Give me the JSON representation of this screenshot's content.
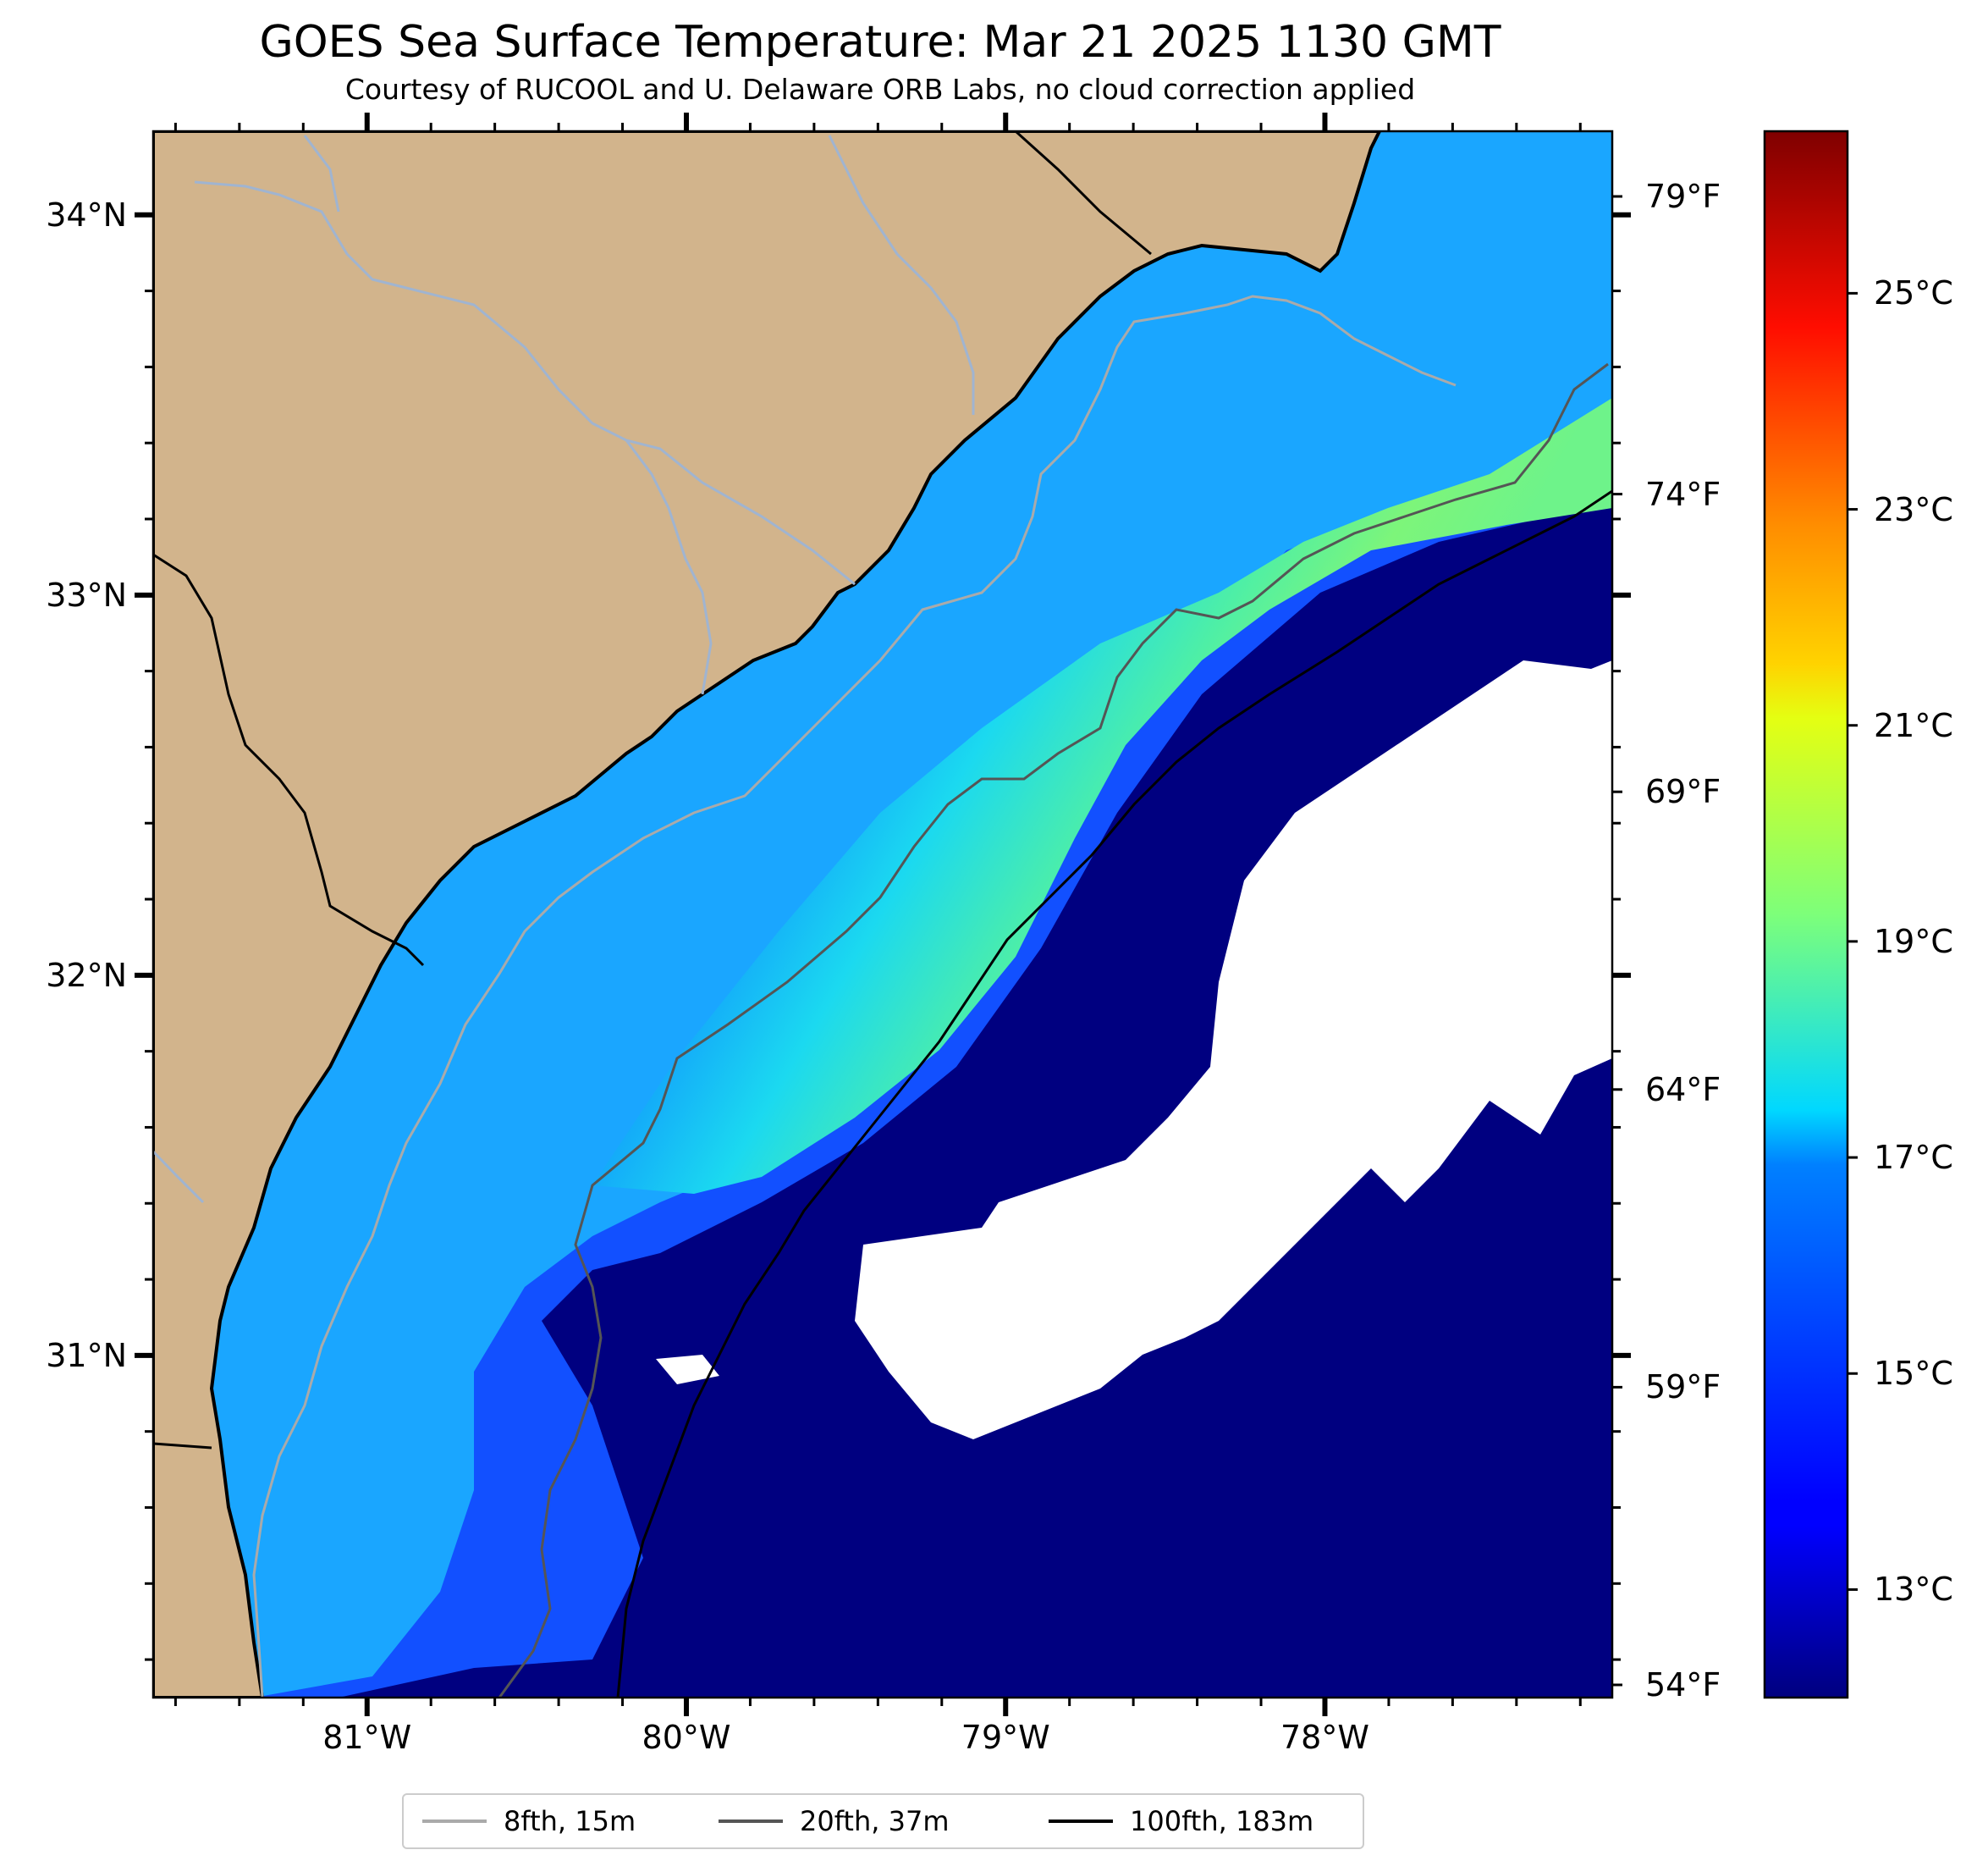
{
  "title": "GOES Sea Surface Temperature: Mar 21 2025 1130 GMT",
  "subtitle": "Courtesy of RUCOOL and U. Delaware ORB Labs, no cloud correction applied",
  "map": {
    "land_color": "#d2b48c",
    "ocean_cold_color": "#000080",
    "no_data_color": "#ffffff",
    "river_color": "#a0b4d0",
    "coastline_color": "#000000",
    "extent": {
      "lon_min": -81.67,
      "lon_max": -77.1,
      "lat_min": 30.1,
      "lat_max": 34.22
    },
    "lat_labels": [
      {
        "value": 34,
        "label": "34°N"
      },
      {
        "value": 33,
        "label": "33°N"
      },
      {
        "value": 32,
        "label": "32°N"
      },
      {
        "value": 31,
        "label": "31°N"
      }
    ],
    "lon_labels": [
      {
        "value": -81,
        "label": "81°W"
      },
      {
        "value": -80,
        "label": "80°W"
      },
      {
        "value": -79,
        "label": "79°W"
      },
      {
        "value": -78,
        "label": "78°W"
      }
    ]
  },
  "temp_axis_f": {
    "labels": [
      "79°F",
      "74°F",
      "69°F",
      "64°F",
      "59°F",
      "54°F"
    ]
  },
  "colorbar": {
    "colormap": "jet",
    "range_c": [
      12,
      26.5
    ],
    "labels": [
      "25°C",
      "23°C",
      "21°C",
      "19°C",
      "17°C",
      "15°C",
      "13°C"
    ],
    "values_c": [
      25,
      23,
      21,
      19,
      17,
      15,
      13
    ]
  },
  "legend": {
    "items": [
      {
        "label": "8fth, 15m",
        "color": "#aaaaaa"
      },
      {
        "label": "20fth, 37m",
        "color": "#555555"
      },
      {
        "label": "100fth, 183m",
        "color": "#000000"
      }
    ]
  }
}
